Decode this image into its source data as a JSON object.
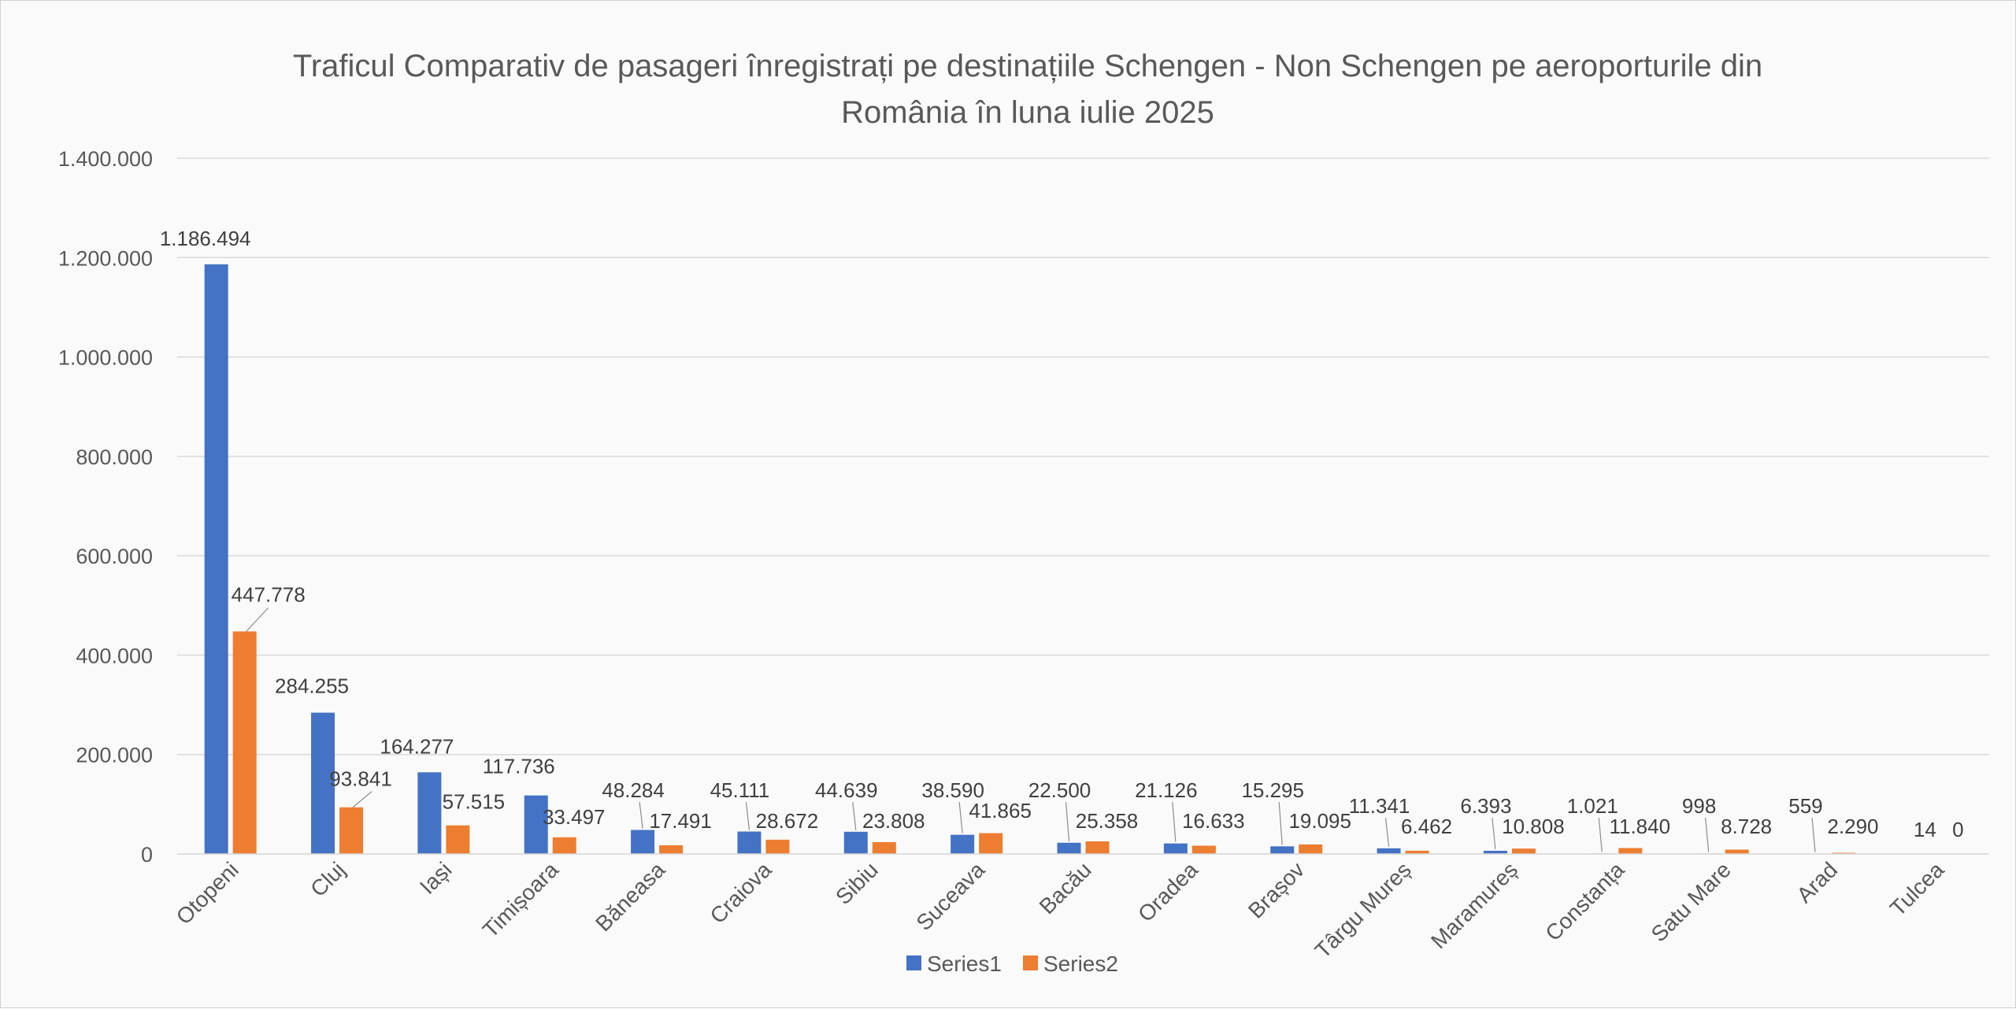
{
  "chart_data": {
    "type": "bar",
    "title": "Traficul Comparativ de pasageri înregistrați pe destinațiile Schengen - Non Schengen pe aeroporturile din România în luna iulie 2025",
    "title_lines": [
      "Traficul Comparativ de pasageri înregistrați pe destinațiile Schengen - Non Schengen pe aeroporturile din",
      "România în luna iulie 2025"
    ],
    "xlabel": "",
    "ylabel": "",
    "categories": [
      "Otopeni",
      "Cluj",
      "Iași",
      "Timișoara",
      "Băneasa",
      "Craiova",
      "Sibiu",
      "Suceava",
      "Bacău",
      "Oradea",
      "Brașov",
      "Târgu Mureș",
      "Maramureș",
      "Constanța",
      "Satu Mare",
      "Arad",
      "Tulcea"
    ],
    "series": [
      {
        "name": "Series1",
        "color": "#4472C4",
        "values": [
          1186494,
          284255,
          164277,
          117736,
          48284,
          45111,
          44639,
          38590,
          22500,
          21126,
          15295,
          11341,
          6393,
          1021,
          998,
          559,
          14
        ],
        "labels": [
          "1.186.494",
          "284.255",
          "164.277",
          "117.736",
          "48.284",
          "45.111",
          "44.639",
          "38.590",
          "22.500",
          "21.126",
          "15.295",
          "11.341",
          "6.393",
          "1.021",
          "998",
          "559",
          "14"
        ]
      },
      {
        "name": "Series2",
        "color": "#ED7D31",
        "values": [
          447778,
          93841,
          57515,
          33497,
          17491,
          28672,
          23808,
          41865,
          25358,
          16633,
          19095,
          6462,
          10808,
          11840,
          8728,
          2290,
          0
        ],
        "labels": [
          "447.778",
          "93.841",
          "57.515",
          "33.497",
          "17.491",
          "28.672",
          "23.808",
          "41.865",
          "25.358",
          "16.633",
          "19.095",
          "6.462",
          "10.808",
          "11.840",
          "8.728",
          "2.290",
          "0"
        ]
      }
    ],
    "ylim": [
      0,
      1400000
    ],
    "yticks": [
      0,
      200000,
      400000,
      600000,
      800000,
      1000000,
      1200000,
      1400000
    ],
    "ytick_labels": [
      "0",
      "200.000",
      "400.000",
      "600.000",
      "800.000",
      "1.000.000",
      "1.200.000",
      "1.400.000"
    ],
    "grid": true,
    "legend": "bottom"
  }
}
